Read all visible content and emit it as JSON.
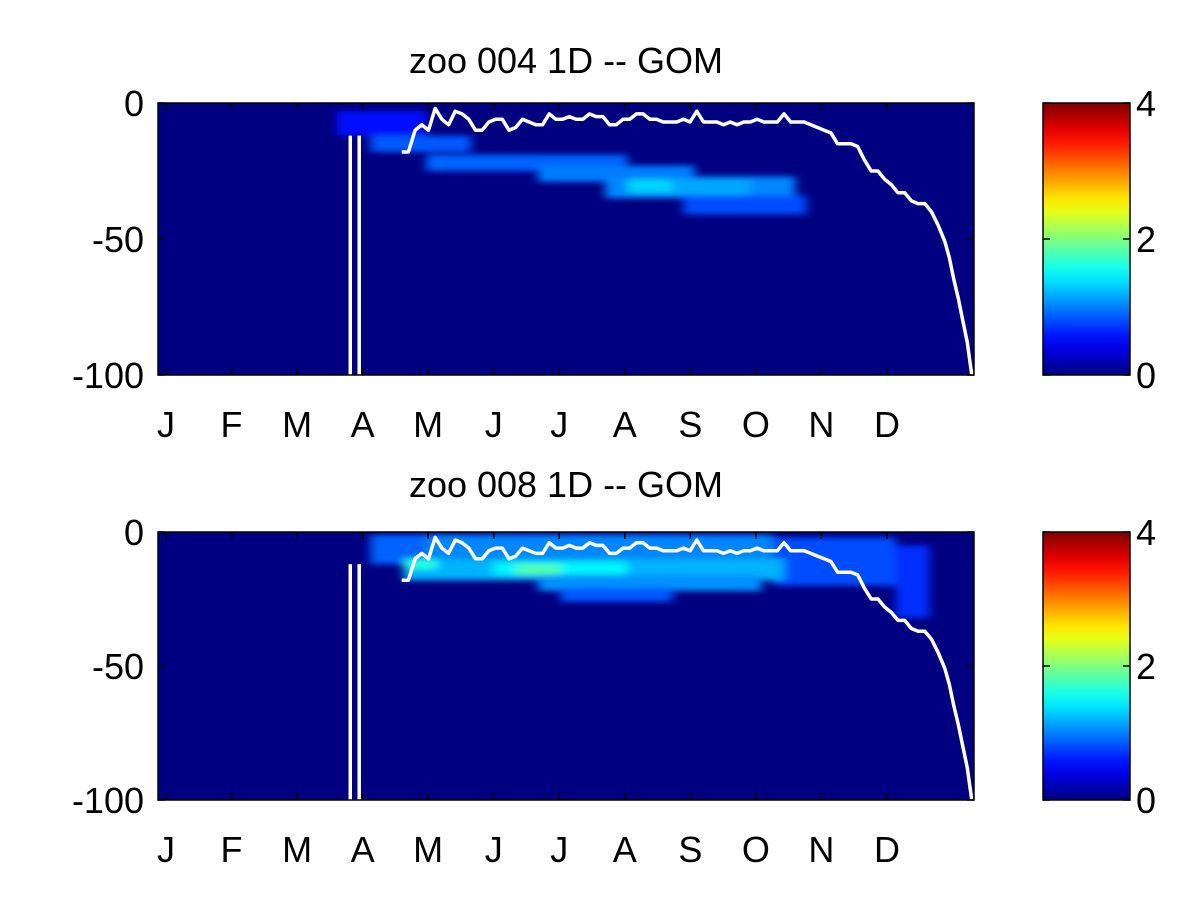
{
  "chart_data": [
    {
      "type": "heatmap",
      "title": "zoo  004 1D   -- GOM",
      "xlabel": "",
      "ylabel": "",
      "x_ticks": [
        "J",
        "F",
        "M",
        "A",
        "M",
        "J",
        "J",
        "A",
        "S",
        "O",
        "N",
        "D"
      ],
      "xlim": [
        0,
        365
      ],
      "y_ticks": [
        0,
        -50,
        -100
      ],
      "ylim": [
        -100,
        0
      ],
      "colorbar": {
        "ticks": [
          0,
          2,
          4
        ],
        "range": [
          0,
          4
        ],
        "colormap": "jet"
      },
      "background_value": 0,
      "patches": [
        {
          "x": [
            80,
            120
          ],
          "y": [
            -12,
            -3
          ],
          "value": 0.05
        },
        {
          "x": [
            95,
            140
          ],
          "y": [
            -18,
            -12
          ],
          "value": 0.4
        },
        {
          "x": [
            120,
            210
          ],
          "y": [
            -25,
            -19
          ],
          "value": 0.45
        },
        {
          "x": [
            170,
            240
          ],
          "y": [
            -29,
            -23
          ],
          "value": 0.55
        },
        {
          "x": [
            200,
            285
          ],
          "y": [
            -35,
            -27
          ],
          "value": 0.6
        },
        {
          "x": [
            210,
            230
          ],
          "y": [
            -33,
            -28
          ],
          "value": 0.95
        },
        {
          "x": [
            230,
            265
          ],
          "y": [
            -34,
            -28
          ],
          "value": 0.75
        },
        {
          "x": [
            235,
            290
          ],
          "y": [
            -41,
            -34
          ],
          "value": 0.35
        }
      ],
      "line_series": {
        "name": "",
        "color": "#ffffff",
        "x": [
          109,
          112,
          115,
          118,
          121,
          124,
          127,
          130,
          133,
          136,
          139,
          142,
          145,
          148,
          151,
          154,
          157,
          160,
          163,
          166,
          169,
          172,
          175,
          178,
          181,
          184,
          187,
          190,
          193,
          196,
          199,
          202,
          205,
          208,
          211,
          214,
          217,
          220,
          223,
          226,
          229,
          232,
          235,
          238,
          241,
          244,
          247,
          250,
          253,
          256,
          259,
          262,
          265,
          268,
          271,
          274,
          277,
          280,
          283,
          286,
          289,
          292,
          295,
          298,
          301,
          304,
          307,
          310,
          313,
          316,
          319,
          322,
          325,
          328,
          331,
          334,
          337,
          340,
          343,
          346,
          349,
          352,
          354,
          356,
          358,
          360,
          362,
          363,
          364
        ],
        "y": [
          -18,
          -18,
          -10,
          -8,
          -10,
          -2,
          -6,
          -8,
          -3,
          -4,
          -6,
          -10,
          -10,
          -7,
          -6,
          -6,
          -10,
          -9,
          -6,
          -7,
          -8,
          -8,
          -4,
          -6,
          -6,
          -5,
          -6,
          -6,
          -4,
          -5,
          -5,
          -8,
          -8,
          -6,
          -6,
          -4,
          -4,
          -6,
          -6,
          -7,
          -7,
          -7,
          -6,
          -7,
          -3,
          -7,
          -7,
          -7,
          -8,
          -7,
          -8,
          -7,
          -7,
          -6,
          -7,
          -7,
          -7,
          -4,
          -7,
          -7,
          -7,
          -8,
          -9,
          -10,
          -11,
          -15,
          -15,
          -15,
          -16,
          -21,
          -25,
          -25,
          -28,
          -30,
          -33,
          -33,
          -36,
          -37,
          -37,
          -40,
          -45,
          -51,
          -57,
          -65,
          -72,
          -80,
          -88,
          -94,
          -100
        ],
        "vertical_lines": [
          {
            "x": 86,
            "y": [
              -100,
              -12
            ]
          },
          {
            "x": 90,
            "y": [
              -100,
              -12
            ]
          }
        ]
      }
    },
    {
      "type": "heatmap",
      "title": "zoo  008 1D   -- GOM",
      "xlabel": "",
      "ylabel": "",
      "x_ticks": [
        "J",
        "F",
        "M",
        "A",
        "M",
        "J",
        "J",
        "A",
        "S",
        "O",
        "N",
        "D"
      ],
      "xlim": [
        0,
        365
      ],
      "y_ticks": [
        0,
        -50,
        -100
      ],
      "ylim": [
        -100,
        0
      ],
      "colorbar": {
        "ticks": [
          0,
          2,
          4
        ],
        "range": [
          0,
          4
        ],
        "colormap": "jet"
      },
      "background_value": 0,
      "patches": [
        {
          "x": [
            95,
            135
          ],
          "y": [
            -12,
            -1
          ],
          "value": 0.45
        },
        {
          "x": [
            120,
            275
          ],
          "y": [
            -10,
            -1
          ],
          "value": 0.6
        },
        {
          "x": [
            275,
            330
          ],
          "y": [
            -20,
            -2
          ],
          "value": 0.35
        },
        {
          "x": [
            330,
            345
          ],
          "y": [
            -32,
            -5
          ],
          "value": 0.2
        },
        {
          "x": [
            110,
            280
          ],
          "y": [
            -18,
            -10
          ],
          "value": 0.8
        },
        {
          "x": [
            110,
            125
          ],
          "y": [
            -14,
            -10
          ],
          "value": 1.3
        },
        {
          "x": [
            150,
            210
          ],
          "y": [
            -16,
            -11
          ],
          "value": 1.1
        },
        {
          "x": [
            160,
            180
          ],
          "y": [
            -16,
            -12
          ],
          "value": 1.5
        },
        {
          "x": [
            170,
            270
          ],
          "y": [
            -22,
            -16
          ],
          "value": 0.65
        },
        {
          "x": [
            180,
            230
          ],
          "y": [
            -26,
            -21
          ],
          "value": 0.4
        }
      ],
      "line_series": {
        "name": "",
        "color": "#ffffff",
        "x": [
          109,
          112,
          115,
          118,
          121,
          124,
          127,
          130,
          133,
          136,
          139,
          142,
          145,
          148,
          151,
          154,
          157,
          160,
          163,
          166,
          169,
          172,
          175,
          178,
          181,
          184,
          187,
          190,
          193,
          196,
          199,
          202,
          205,
          208,
          211,
          214,
          217,
          220,
          223,
          226,
          229,
          232,
          235,
          238,
          241,
          244,
          247,
          250,
          253,
          256,
          259,
          262,
          265,
          268,
          271,
          274,
          277,
          280,
          283,
          286,
          289,
          292,
          295,
          298,
          301,
          304,
          307,
          310,
          313,
          316,
          319,
          322,
          325,
          328,
          331,
          334,
          337,
          340,
          343,
          346,
          349,
          352,
          354,
          356,
          358,
          360,
          362,
          363,
          364
        ],
        "y": [
          -18,
          -18,
          -10,
          -8,
          -10,
          -2,
          -6,
          -8,
          -3,
          -4,
          -6,
          -10,
          -10,
          -7,
          -6,
          -6,
          -10,
          -9,
          -6,
          -7,
          -8,
          -8,
          -4,
          -6,
          -6,
          -5,
          -6,
          -6,
          -4,
          -5,
          -5,
          -8,
          -8,
          -6,
          -6,
          -4,
          -4,
          -6,
          -6,
          -7,
          -7,
          -7,
          -6,
          -7,
          -3,
          -7,
          -7,
          -7,
          -8,
          -7,
          -8,
          -7,
          -7,
          -6,
          -7,
          -7,
          -7,
          -4,
          -7,
          -7,
          -7,
          -8,
          -9,
          -10,
          -11,
          -15,
          -15,
          -15,
          -16,
          -21,
          -25,
          -25,
          -28,
          -30,
          -33,
          -33,
          -36,
          -37,
          -37,
          -40,
          -45,
          -51,
          -57,
          -65,
          -72,
          -80,
          -88,
          -94,
          -100
        ],
        "vertical_lines": [
          {
            "x": 86,
            "y": [
              -100,
              -12
            ]
          },
          {
            "x": 90,
            "y": [
              -100,
              -12
            ]
          }
        ]
      }
    }
  ]
}
